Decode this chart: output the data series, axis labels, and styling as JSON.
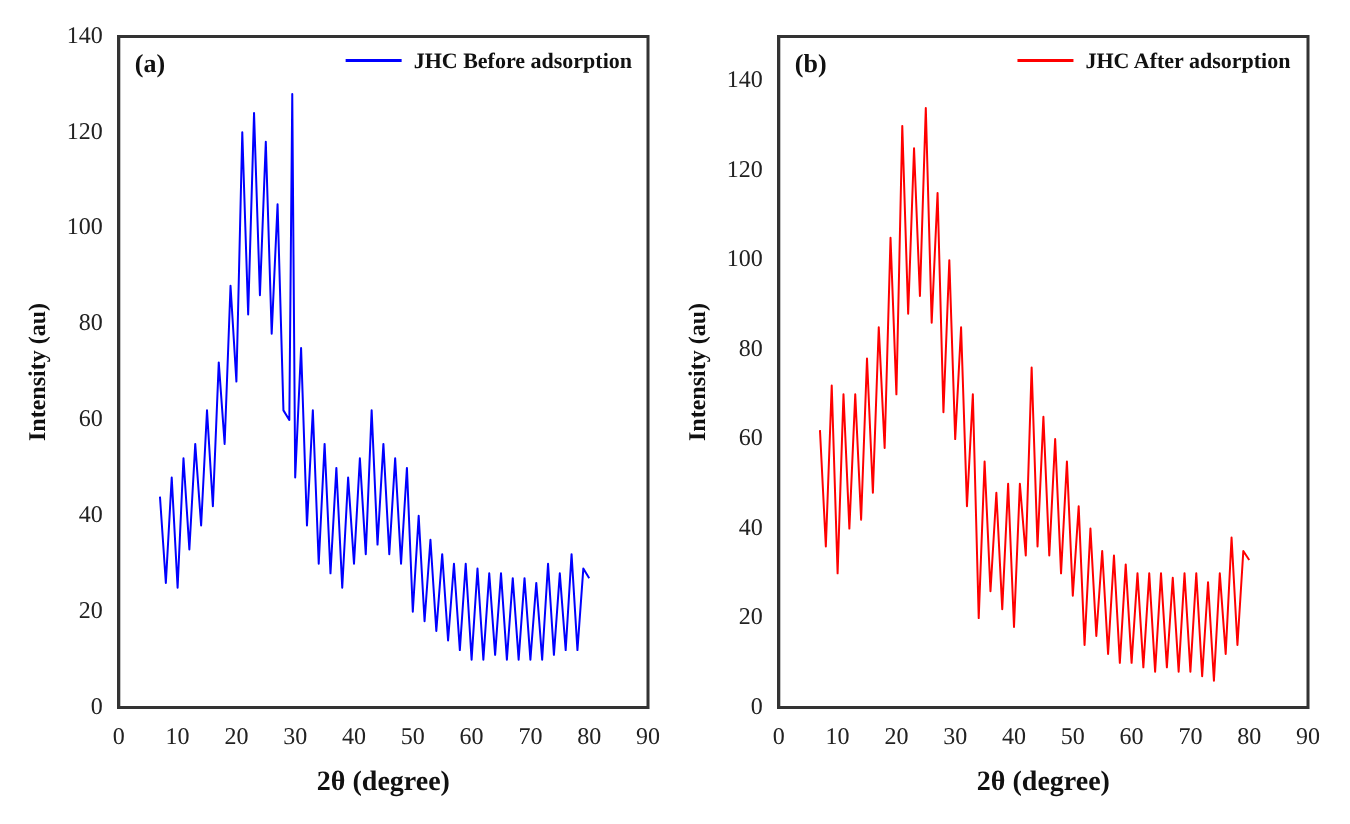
{
  "chart_data": [
    {
      "type": "line",
      "xlabel": "2θ (degree)",
      "ylabel": "Intensity (au)",
      "annotations": [
        "(a)"
      ],
      "x": [
        7,
        8,
        9,
        10,
        11,
        12,
        13,
        14,
        15,
        16,
        17,
        18,
        19,
        20,
        21,
        22,
        23,
        24,
        25,
        26,
        27,
        28,
        29,
        29.5,
        30,
        31,
        32,
        33,
        34,
        35,
        36,
        37,
        38,
        39,
        40,
        41,
        42,
        43,
        44,
        45,
        46,
        47,
        48,
        49,
        50,
        51,
        52,
        53,
        54,
        55,
        56,
        57,
        58,
        59,
        60,
        61,
        62,
        63,
        64,
        65,
        66,
        67,
        68,
        69,
        70,
        71,
        72,
        73,
        74,
        75,
        76,
        77,
        78,
        79,
        80
      ],
      "series": [
        {
          "name": "JHC Before adsorption",
          "color": "#0000ff",
          "values": [
            44,
            26,
            48,
            25,
            52,
            33,
            55,
            38,
            62,
            42,
            72,
            55,
            88,
            68,
            120,
            82,
            124,
            86,
            118,
            78,
            105,
            62,
            60,
            128,
            48,
            75,
            38,
            62,
            30,
            55,
            28,
            50,
            25,
            48,
            30,
            52,
            32,
            62,
            34,
            55,
            32,
            52,
            30,
            50,
            20,
            40,
            18,
            35,
            16,
            32,
            14,
            30,
            12,
            30,
            10,
            29,
            10,
            28,
            11,
            28,
            10,
            27,
            10,
            27,
            10,
            26,
            10,
            30,
            11,
            28,
            12,
            32,
            12,
            29,
            27
          ]
        }
      ],
      "xlim": [
        0,
        90
      ],
      "xticks": [
        0,
        10,
        20,
        30,
        40,
        50,
        60,
        70,
        80,
        90
      ],
      "ylim": [
        0,
        140
      ],
      "yticks": [
        0,
        20,
        40,
        60,
        80,
        100,
        120,
        140
      ],
      "grid": false,
      "legend": "top right",
      "marker": "none",
      "line_style": "solid"
    },
    {
      "type": "line",
      "xlabel": "2θ (degree)",
      "ylabel": "Intensity (au)",
      "annotations": [
        "(b)"
      ],
      "x": [
        7,
        8,
        9,
        10,
        11,
        12,
        13,
        14,
        15,
        16,
        17,
        18,
        19,
        20,
        21,
        22,
        23,
        24,
        25,
        26,
        27,
        28,
        29,
        30,
        31,
        32,
        33,
        34,
        35,
        36,
        37,
        38,
        39,
        40,
        41,
        42,
        43,
        44,
        45,
        46,
        47,
        48,
        49,
        50,
        51,
        52,
        53,
        54,
        55,
        56,
        57,
        58,
        59,
        60,
        61,
        62,
        63,
        64,
        65,
        66,
        67,
        68,
        69,
        70,
        71,
        72,
        73,
        74,
        75,
        76,
        77,
        78,
        79,
        80
      ],
      "series": [
        {
          "name": "JHC After adsorption",
          "color": "#ff0000",
          "values": [
            62,
            36,
            72,
            30,
            70,
            40,
            70,
            42,
            78,
            48,
            85,
            58,
            105,
            70,
            130,
            88,
            125,
            92,
            134,
            86,
            115,
            66,
            100,
            60,
            85,
            45,
            70,
            20,
            55,
            26,
            48,
            22,
            50,
            18,
            50,
            34,
            76,
            36,
            65,
            34,
            60,
            30,
            55,
            25,
            45,
            14,
            40,
            16,
            35,
            12,
            34,
            10,
            32,
            10,
            30,
            9,
            30,
            8,
            30,
            9,
            29,
            8,
            30,
            8,
            30,
            7,
            28,
            6,
            30,
            12,
            38,
            14,
            35,
            33
          ]
        }
      ],
      "xlim": [
        0,
        90
      ],
      "xticks": [
        0,
        10,
        20,
        30,
        40,
        50,
        60,
        70,
        80,
        90
      ],
      "ylim": [
        0,
        150
      ],
      "yticks": [
        0,
        20,
        40,
        60,
        80,
        100,
        120,
        140
      ],
      "grid": false,
      "legend": "top right",
      "marker": "none",
      "line_style": "solid"
    }
  ]
}
